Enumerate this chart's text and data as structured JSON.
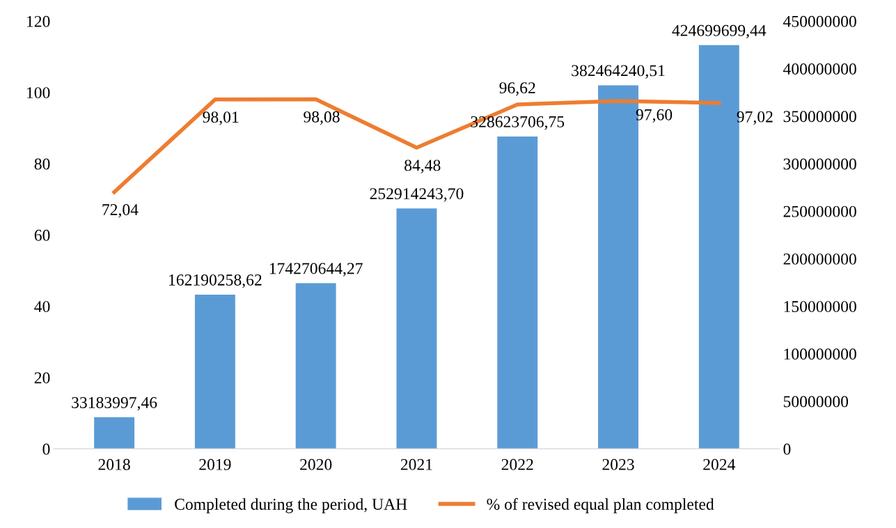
{
  "chart_data": {
    "type": "bar",
    "categories": [
      "2018",
      "2019",
      "2020",
      "2021",
      "2022",
      "2023",
      "2024"
    ],
    "series": [
      {
        "name": "Completed during the period, UAH",
        "axis": "y2",
        "color": "#5b9bd5",
        "values": [
          33183997.46,
          162190258.62,
          174270644.27,
          252914243.7,
          328623706.75,
          382464240.51,
          424699699.44
        ],
        "value_labels": [
          "33183997,46",
          "162190258,62",
          "174270644,27",
          "252914243,70",
          "328623706,75",
          "382464240,51",
          "424699699,44"
        ]
      },
      {
        "name": "% of revised equal plan completed",
        "type": "line",
        "axis": "y",
        "color": "#ed7d31",
        "values": [
          72.04,
          98.01,
          98.08,
          84.48,
          96.62,
          97.6,
          97.02
        ],
        "value_labels": [
          "72,04",
          "98,01",
          "98,08",
          "84,48",
          "96,62",
          "97,60",
          "97,02"
        ]
      }
    ],
    "ylim": [
      0,
      120
    ],
    "yticks": [
      0,
      20,
      40,
      60,
      80,
      100,
      120
    ],
    "y2lim": [
      0,
      450000000
    ],
    "y2ticks": [
      0,
      50000000,
      100000000,
      150000000,
      200000000,
      250000000,
      300000000,
      350000000,
      400000000,
      450000000
    ],
    "legend": "bottom",
    "grid": false,
    "marker": "none",
    "line_style": "solid"
  }
}
